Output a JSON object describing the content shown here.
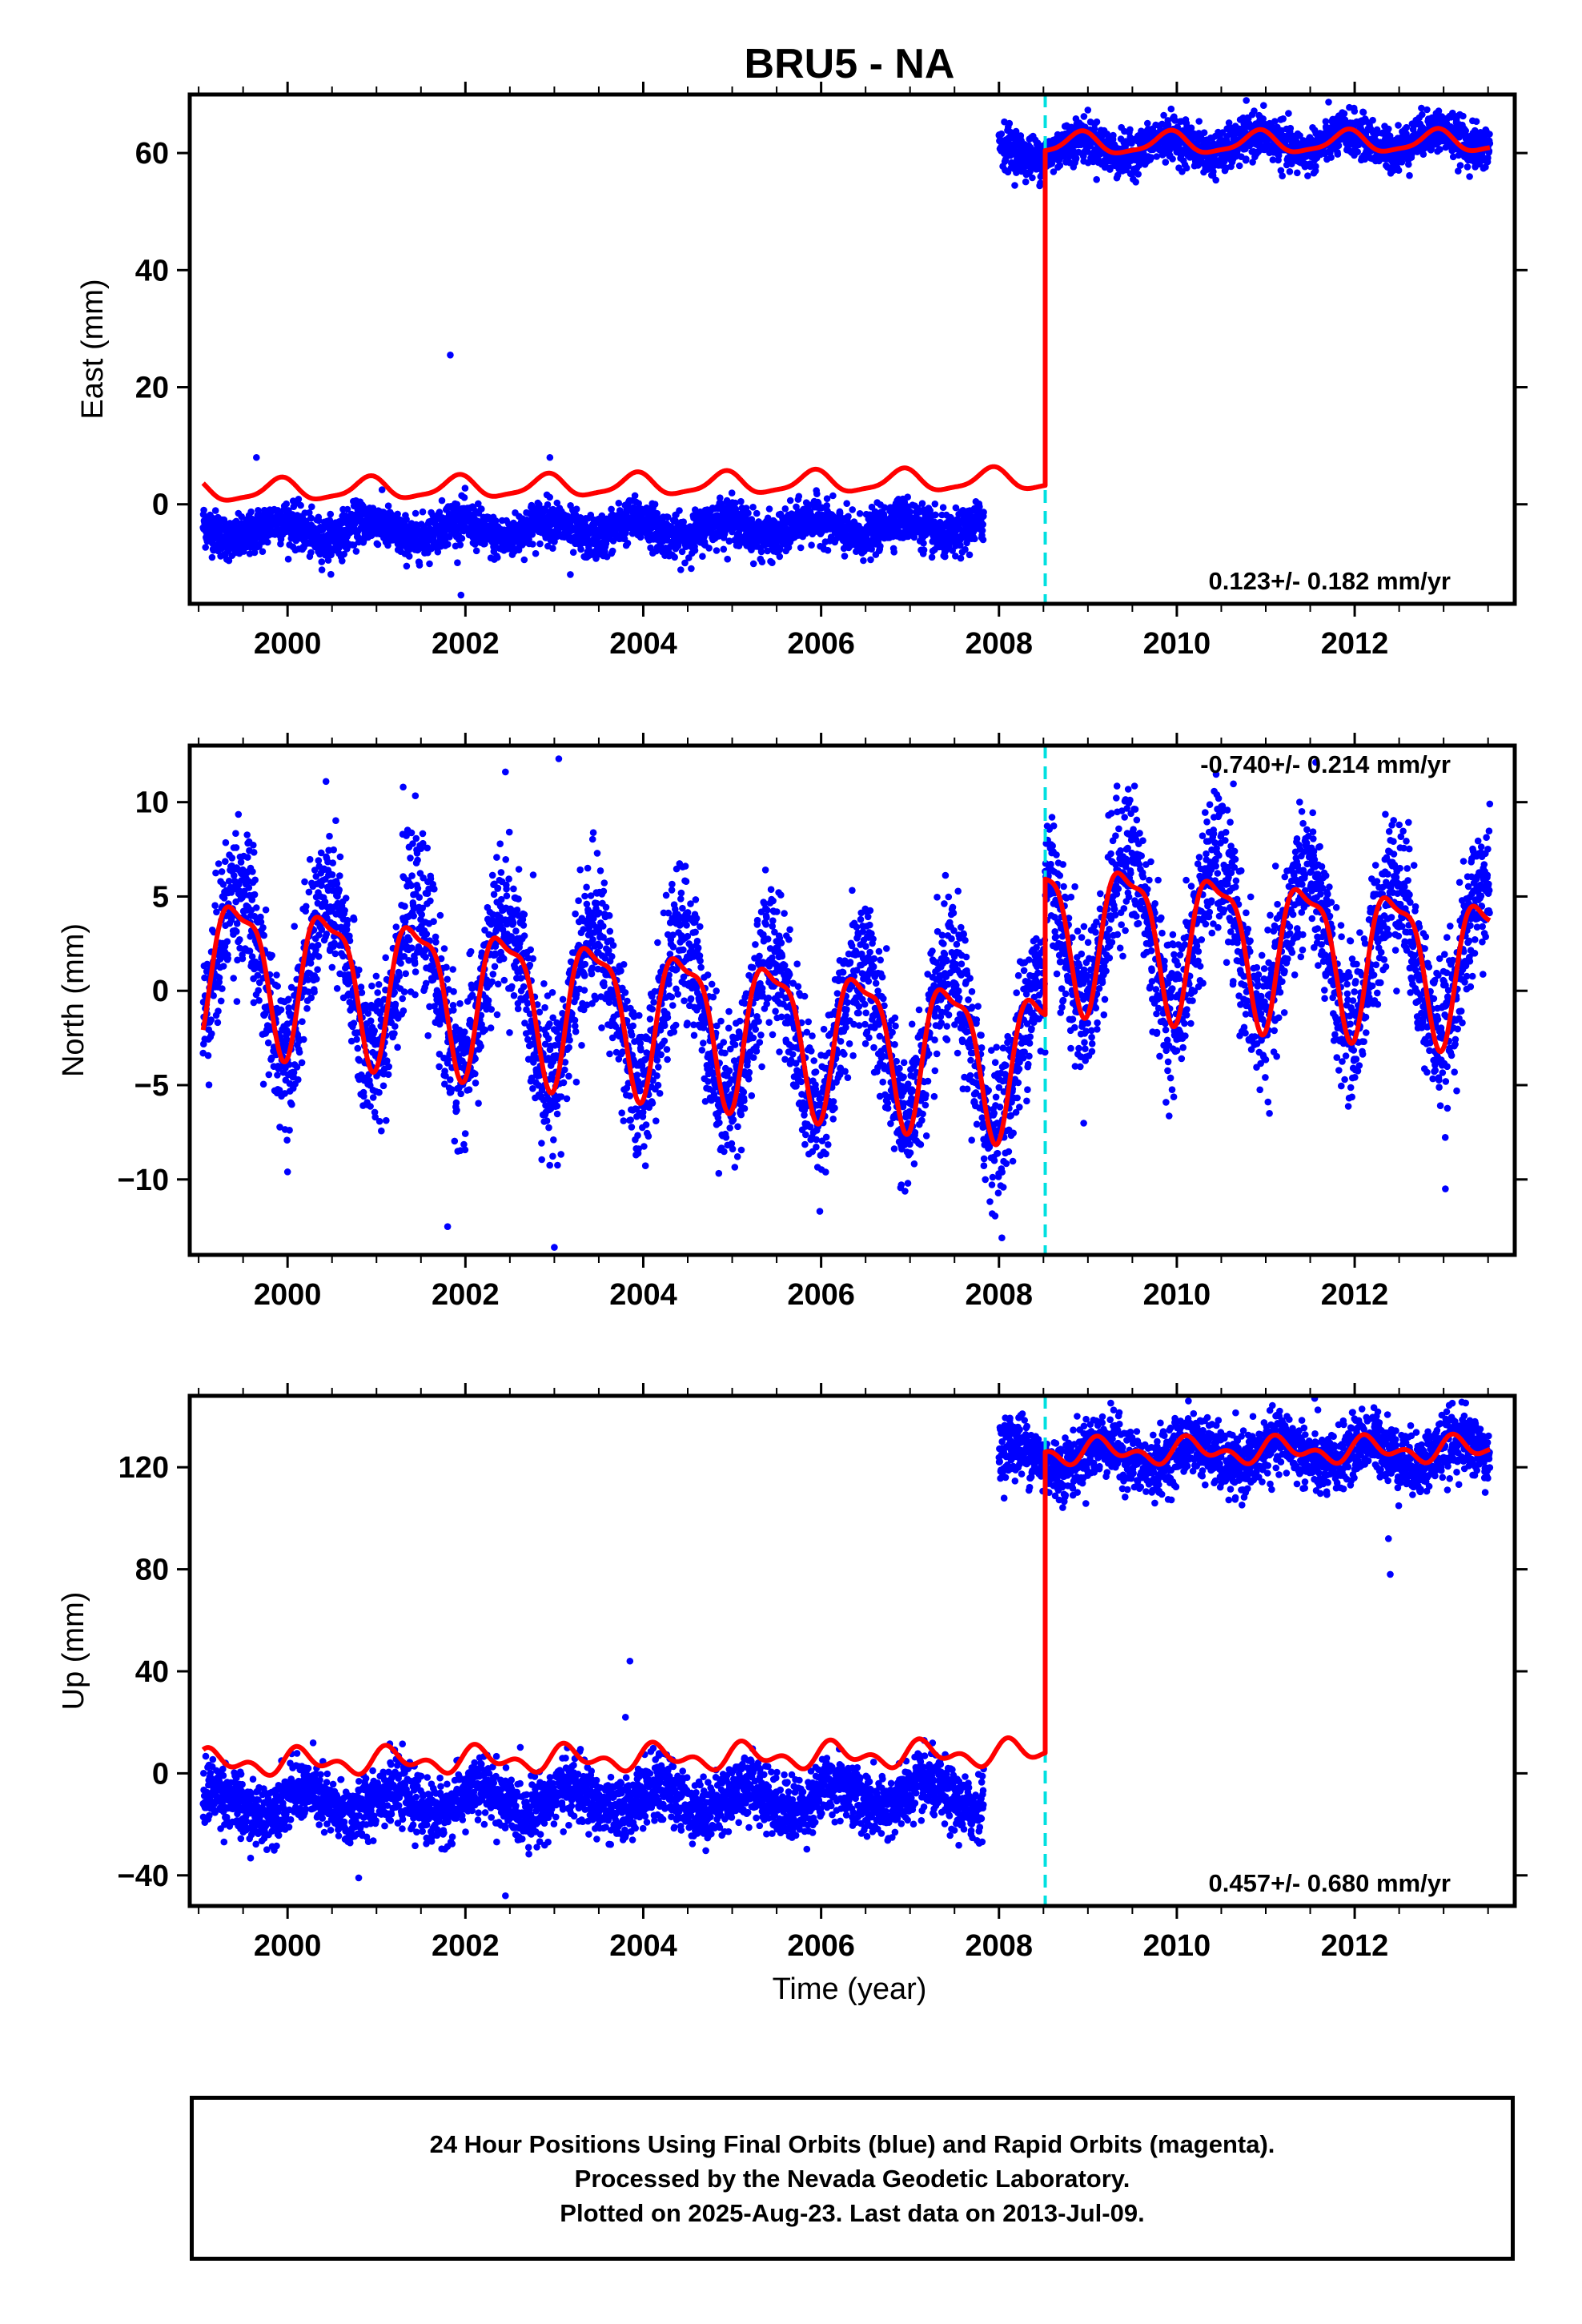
{
  "title": "BRU5 - NA",
  "footer": {
    "line1": "24 Hour Positions Using Final Orbits (blue) and Rapid Orbits (magenta).",
    "line2": "Processed by the Nevada Geodetic Laboratory.",
    "line3": "Plotted on 2025-Aug-23. Last data on 2013-Jul-09."
  },
  "colors": {
    "data_points": "#0000ff",
    "model_fit": "#ff0000",
    "offset_marker": "#00e0e0"
  },
  "chart_data": [
    {
      "type": "scatter",
      "panel": "east",
      "ylabel": "East (mm)",
      "xlabel": "",
      "xlim": [
        1998.9,
        2013.8
      ],
      "ylim": [
        -17,
        70
      ],
      "yticks": [
        0,
        20,
        40,
        60
      ],
      "xticks": [
        2000,
        2002,
        2004,
        2006,
        2008,
        2010,
        2012
      ],
      "rate_text": "0.123+/- 0.182 mm/yr",
      "rate_position": "bottom-right",
      "offset_epoch": 2008.52,
      "series": [
        {
          "kind": "points",
          "segments": [
            {
              "x_start": 1999.05,
              "x_end": 2007.83,
              "mean_start": -4.5,
              "mean_end": -4.0,
              "annual_amp": 1.6,
              "annual_phase": 2.1,
              "noise": 1.8
            },
            {
              "x_start": 2008.0,
              "x_end": 2013.52,
              "mean_start": 60.5,
              "mean_end": 62.5,
              "annual_amp": 1.6,
              "annual_phase": 2.1,
              "noise": 1.8
            }
          ],
          "outliers": [
            [
              2001.83,
              25.5
            ],
            [
              2001.95,
              -15.5
            ],
            [
              2002.95,
              8.0
            ],
            [
              2003.18,
              -12.0
            ],
            [
              1999.65,
              8.0
            ]
          ]
        },
        {
          "kind": "model",
          "segments": [
            {
              "x_start": 1999.05,
              "x_end": 2008.52,
              "mean_start": 2.2,
              "mean_end": 4.3,
              "annual_amp": 1.8,
              "annual_phase": 2.1,
              "semi_amp": 0.5
            },
            {
              "x_start": 2008.52,
              "x_end": 2013.52,
              "mean_start": 61.5,
              "mean_end": 62.0,
              "annual_amp": 1.8,
              "annual_phase": 2.1,
              "semi_amp": 0.5
            }
          ]
        }
      ]
    },
    {
      "type": "scatter",
      "panel": "north",
      "ylabel": "North (mm)",
      "xlabel": "",
      "xlim": [
        1998.9,
        2013.8
      ],
      "ylim": [
        -14,
        13
      ],
      "yticks": [
        -10,
        -5,
        0,
        5,
        10
      ],
      "xticks": [
        2000,
        2002,
        2004,
        2006,
        2008,
        2010,
        2012
      ],
      "rate_text": "-0.740+/- 0.214 mm/yr",
      "rate_position": "top-right",
      "offset_epoch": 2008.52,
      "series": [
        {
          "kind": "points",
          "segments": [
            {
              "x_start": 1999.05,
              "x_end": 2008.52,
              "mean_start": 1.6,
              "mean_end": -3.6,
              "annual_amp": 4.0,
              "annual_phase": -1.25,
              "noise": 1.9
            },
            {
              "x_start": 2008.52,
              "x_end": 2013.52,
              "mean_start": 3.6,
              "mean_end": 1.4,
              "annual_amp": 4.0,
              "annual_phase": -1.25,
              "noise": 1.9
            }
          ],
          "outliers": [
            [
              2001.3,
              10.8
            ],
            [
              2002.45,
              11.6
            ],
            [
              2003.05,
              12.3
            ],
            [
              2003.0,
              -13.6
            ],
            [
              2001.8,
              -12.5
            ],
            [
              2000.0,
              -9.6
            ],
            [
              2013.02,
              -10.5
            ],
            [
              2010.45,
              10.4
            ]
          ]
        },
        {
          "kind": "model",
          "segments": [
            {
              "x_start": 1999.05,
              "x_end": 2008.52,
              "mean_start": 1.6,
              "mean_end": -3.6,
              "annual_amp": 3.7,
              "annual_phase": -1.25,
              "semi_amp": 1.2
            },
            {
              "x_start": 2008.52,
              "x_end": 2013.52,
              "mean_start": 3.6,
              "mean_end": 1.4,
              "annual_amp": 3.7,
              "annual_phase": -1.25,
              "semi_amp": 1.2
            }
          ]
        }
      ]
    },
    {
      "type": "scatter",
      "panel": "up",
      "ylabel": "Up (mm)",
      "xlabel": "Time (year)",
      "xlim": [
        1998.9,
        2013.8
      ],
      "ylim": [
        -52,
        148
      ],
      "yticks": [
        -40,
        0,
        40,
        80,
        120
      ],
      "xticks": [
        2000,
        2002,
        2004,
        2006,
        2008,
        2010,
        2012
      ],
      "rate_text": "0.457+/- 0.680 mm/yr",
      "rate_position": "bottom-right",
      "offset_epoch": 2008.52,
      "series": [
        {
          "kind": "points",
          "segments": [
            {
              "x_start": 1999.05,
              "x_end": 2007.83,
              "mean_start": -12.0,
              "mean_end": -9.0,
              "annual_amp": 5.0,
              "annual_phase": 0.5,
              "noise": 6.0
            },
            {
              "x_start": 2008.0,
              "x_end": 2013.52,
              "mean_start": 124.0,
              "mean_end": 126.0,
              "annual_amp": 5.0,
              "annual_phase": 0.5,
              "noise": 6.0
            }
          ],
          "outliers": [
            [
              2003.85,
              44.0
            ],
            [
              2003.8,
              22.0
            ],
            [
              2002.45,
              -48.0
            ],
            [
              2000.8,
              -41.0
            ],
            [
              2012.38,
              92.0
            ],
            [
              2012.4,
              78.0
            ],
            [
              2011.55,
              147.0
            ]
          ]
        },
        {
          "kind": "model",
          "segments": [
            {
              "x_start": 1999.05,
              "x_end": 2008.52,
              "mean_start": 4.0,
              "mean_end": 8.0,
              "annual_amp": 3.5,
              "annual_phase": 0.5,
              "semi_amp": 3.0
            },
            {
              "x_start": 2008.52,
              "x_end": 2013.52,
              "mean_start": 126.0,
              "mean_end": 127.0,
              "annual_amp": 3.5,
              "annual_phase": 0.5,
              "semi_amp": 3.0
            }
          ]
        }
      ]
    }
  ]
}
